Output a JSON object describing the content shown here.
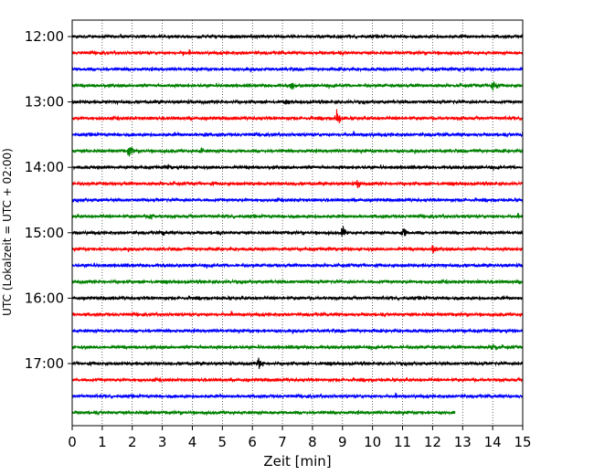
{
  "chart_data": {
    "type": "line",
    "title": "",
    "xlabel": "Zeit  [min]",
    "ylabel": "UTC (Lokalzeit = UTC + 02:00)",
    "xlim": [
      0,
      15
    ],
    "x_ticks": [
      "0",
      "1",
      "2",
      "3",
      "4",
      "5",
      "6",
      "7",
      "8",
      "9",
      "10",
      "11",
      "12",
      "13",
      "14",
      "15"
    ],
    "y_tick_labels": [
      "12:00",
      "13:00",
      "14:00",
      "15:00",
      "16:00",
      "17:00"
    ],
    "vertical_gridlines": "dotted",
    "trace_interval_minutes": 15,
    "first_trace_time": "12:00",
    "last_trace_end_minute": 12.75,
    "color_cycle": [
      "#000000",
      "#ff0000",
      "#0000ff",
      "#008000"
    ],
    "traces": [
      {
        "start": "12:00",
        "color": "#000000",
        "events": [
          {
            "t": 8.2,
            "amp": 0.3
          },
          {
            "t": 13.0,
            "amp": 0.4
          }
        ]
      },
      {
        "start": "12:15",
        "color": "#ff0000",
        "events": [
          {
            "t": 3.7,
            "amp": 0.45
          },
          {
            "t": 8.3,
            "amp": 0.3
          }
        ]
      },
      {
        "start": "12:30",
        "color": "#0000ff",
        "events": []
      },
      {
        "start": "12:45",
        "color": "#008000",
        "events": [
          {
            "t": 7.3,
            "amp": 0.8
          },
          {
            "t": 14.0,
            "amp": 1.3
          }
        ]
      },
      {
        "start": "13:00",
        "color": "#000000",
        "events": [
          {
            "t": 7.1,
            "amp": 0.4
          }
        ]
      },
      {
        "start": "13:15",
        "color": "#ff0000",
        "events": [
          {
            "t": 0.9,
            "amp": 0.4
          },
          {
            "t": 8.8,
            "amp": 1.4
          }
        ]
      },
      {
        "start": "13:30",
        "color": "#0000ff",
        "events": [
          {
            "t": 4.4,
            "amp": 0.5
          },
          {
            "t": 15.0,
            "amp": 0.8
          }
        ]
      },
      {
        "start": "13:45",
        "color": "#008000",
        "events": [
          {
            "t": 1.9,
            "amp": 1.1
          },
          {
            "t": 4.3,
            "amp": 0.7
          }
        ]
      },
      {
        "start": "14:00",
        "color": "#000000",
        "events": [
          {
            "t": 3.2,
            "amp": 0.5
          }
        ]
      },
      {
        "start": "14:15",
        "color": "#ff0000",
        "events": [
          {
            "t": 9.5,
            "amp": 0.8
          }
        ]
      },
      {
        "start": "14:30",
        "color": "#0000ff",
        "events": []
      },
      {
        "start": "14:45",
        "color": "#008000",
        "events": [
          {
            "t": 2.6,
            "amp": 0.8
          }
        ]
      },
      {
        "start": "15:00",
        "color": "#000000",
        "events": [
          {
            "t": 3.0,
            "amp": 0.6
          },
          {
            "t": 9.0,
            "amp": 1.0
          },
          {
            "t": 11.0,
            "amp": 1.0
          }
        ]
      },
      {
        "start": "15:15",
        "color": "#ff0000",
        "events": [
          {
            "t": 12.0,
            "amp": 0.9
          }
        ]
      },
      {
        "start": "15:30",
        "color": "#0000ff",
        "events": [
          {
            "t": 11.8,
            "amp": 0.5
          }
        ]
      },
      {
        "start": "15:45",
        "color": "#008000",
        "events": [
          {
            "t": 12.8,
            "amp": 0.3
          }
        ]
      },
      {
        "start": "16:00",
        "color": "#000000",
        "events": [
          {
            "t": 8.0,
            "amp": 0.3
          }
        ]
      },
      {
        "start": "16:15",
        "color": "#ff0000",
        "events": [
          {
            "t": 7.5,
            "amp": 0.3
          }
        ]
      },
      {
        "start": "16:30",
        "color": "#0000ff",
        "events": []
      },
      {
        "start": "16:45",
        "color": "#008000",
        "events": [
          {
            "t": 14.0,
            "amp": 1.1
          }
        ]
      },
      {
        "start": "17:00",
        "color": "#000000",
        "events": [
          {
            "t": 6.2,
            "amp": 1.1
          }
        ]
      },
      {
        "start": "17:15",
        "color": "#ff0000",
        "events": []
      },
      {
        "start": "17:30",
        "color": "#0000ff",
        "events": []
      },
      {
        "start": "17:45",
        "color": "#008000",
        "events": [
          {
            "t": 2.5,
            "amp": 0.5
          }
        ]
      }
    ]
  }
}
